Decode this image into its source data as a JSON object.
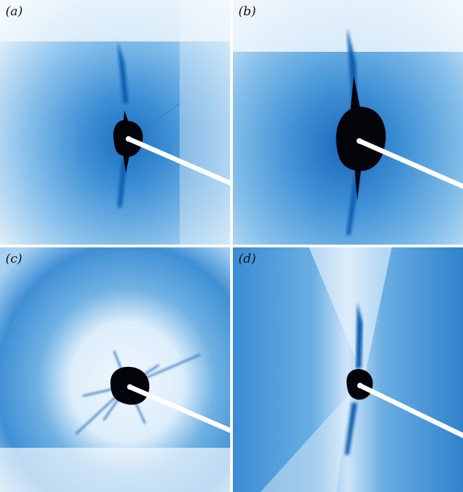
{
  "panels": [
    {
      "id": "a",
      "label": "(a)"
    },
    {
      "id": "b",
      "label": "(b)"
    },
    {
      "id": "c",
      "label": "(c)"
    },
    {
      "id": "d",
      "label": "(d)"
    }
  ],
  "colors": {
    "background": "#ffffff",
    "scatter_light": "#e8f2fb",
    "scatter_mid": "#5aa6dd",
    "scatter_deep": "#0e5fb0",
    "core": "#02040a",
    "beamstop": "#ffffff"
  }
}
